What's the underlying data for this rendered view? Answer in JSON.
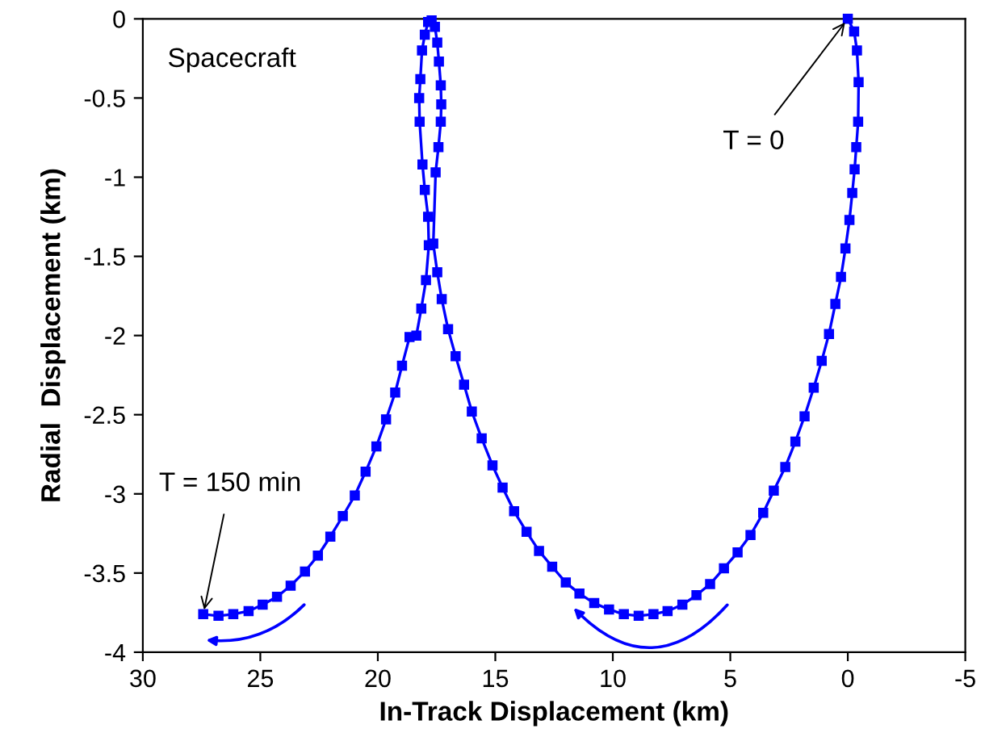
{
  "chart_data": {
    "type": "line",
    "xlabel": "In-Track Displacement (km)",
    "ylabel": "Radial  Displacement (km)",
    "xlim": [
      30,
      -5
    ],
    "xticks": [
      30,
      25,
      20,
      15,
      10,
      5,
      0,
      -5
    ],
    "ylim": [
      -4,
      0
    ],
    "yticks": [
      0,
      -0.5,
      -1,
      -1.5,
      -2,
      -2.5,
      -3,
      -3.5,
      -4
    ],
    "grid": false,
    "marker": "square",
    "line_style": "solid",
    "annotations": [
      "Spacecraft",
      {
        "text": "T = 0",
        "x": 0,
        "y": 0
      },
      {
        "text": "T = 150 min",
        "x": 27.43,
        "y": -3.76
      }
    ],
    "series": [
      {
        "color": "#0000ff",
        "x": [
          0,
          -0.27,
          -0.39,
          -0.46,
          -0.44,
          -0.36,
          -0.29,
          -0.19,
          -0.07,
          0.1,
          0.29,
          0.53,
          0.8,
          1.11,
          1.45,
          1.84,
          2.23,
          2.66,
          3.15,
          3.6,
          4.14,
          4.69,
          5.27,
          5.86,
          6.44,
          7.04,
          7.67,
          8.27,
          8.9,
          9.53,
          10.16,
          10.79,
          11.42,
          12.0,
          12.58,
          13.14,
          13.67,
          14.2,
          14.69,
          15.12,
          15.58,
          16.0,
          16.33,
          16.69,
          17.01,
          17.28,
          17.47,
          17.64,
          17.54,
          17.42,
          17.32,
          17.3,
          17.32,
          17.4,
          17.47,
          17.57,
          17.71,
          17.86,
          18.0,
          18.12,
          18.19,
          18.24,
          18.22,
          18.1,
          18.0,
          17.86,
          17.83,
          17.95,
          18.15,
          18.36,
          18.65,
          18.97,
          19.26,
          19.65,
          20.06,
          20.52,
          20.98,
          21.49,
          22.02,
          22.55,
          23.1,
          23.71,
          24.29,
          24.9,
          25.5,
          26.15,
          26.78,
          27.43
        ],
        "values": [
          0,
          -0.08,
          -0.2,
          -0.4,
          -0.65,
          -0.81,
          -0.95,
          -1.1,
          -1.27,
          -1.45,
          -1.63,
          -1.8,
          -1.99,
          -2.16,
          -2.33,
          -2.51,
          -2.67,
          -2.83,
          -2.98,
          -3.12,
          -3.26,
          -3.37,
          -3.47,
          -3.57,
          -3.64,
          -3.7,
          -3.74,
          -3.76,
          -3.77,
          -3.76,
          -3.73,
          -3.69,
          -3.63,
          -3.56,
          -3.46,
          -3.36,
          -3.24,
          -3.11,
          -2.96,
          -2.82,
          -2.65,
          -2.48,
          -2.31,
          -2.13,
          -1.96,
          -1.77,
          -1.6,
          -1.42,
          -0.97,
          -0.81,
          -0.65,
          -0.54,
          -0.42,
          -0.27,
          -0.15,
          -0.05,
          -0.01,
          -0.02,
          -0.1,
          -0.2,
          -0.38,
          -0.5,
          -0.65,
          -0.92,
          -1.08,
          -1.25,
          -1.43,
          -1.65,
          -1.83,
          -2.0,
          -2.01,
          -2.19,
          -2.36,
          -2.53,
          -2.7,
          -2.86,
          -3.01,
          -3.14,
          -3.27,
          -3.39,
          -3.49,
          -3.58,
          -3.65,
          -3.7,
          -3.74,
          -3.76,
          -3.77,
          -3.76
        ]
      }
    ]
  }
}
